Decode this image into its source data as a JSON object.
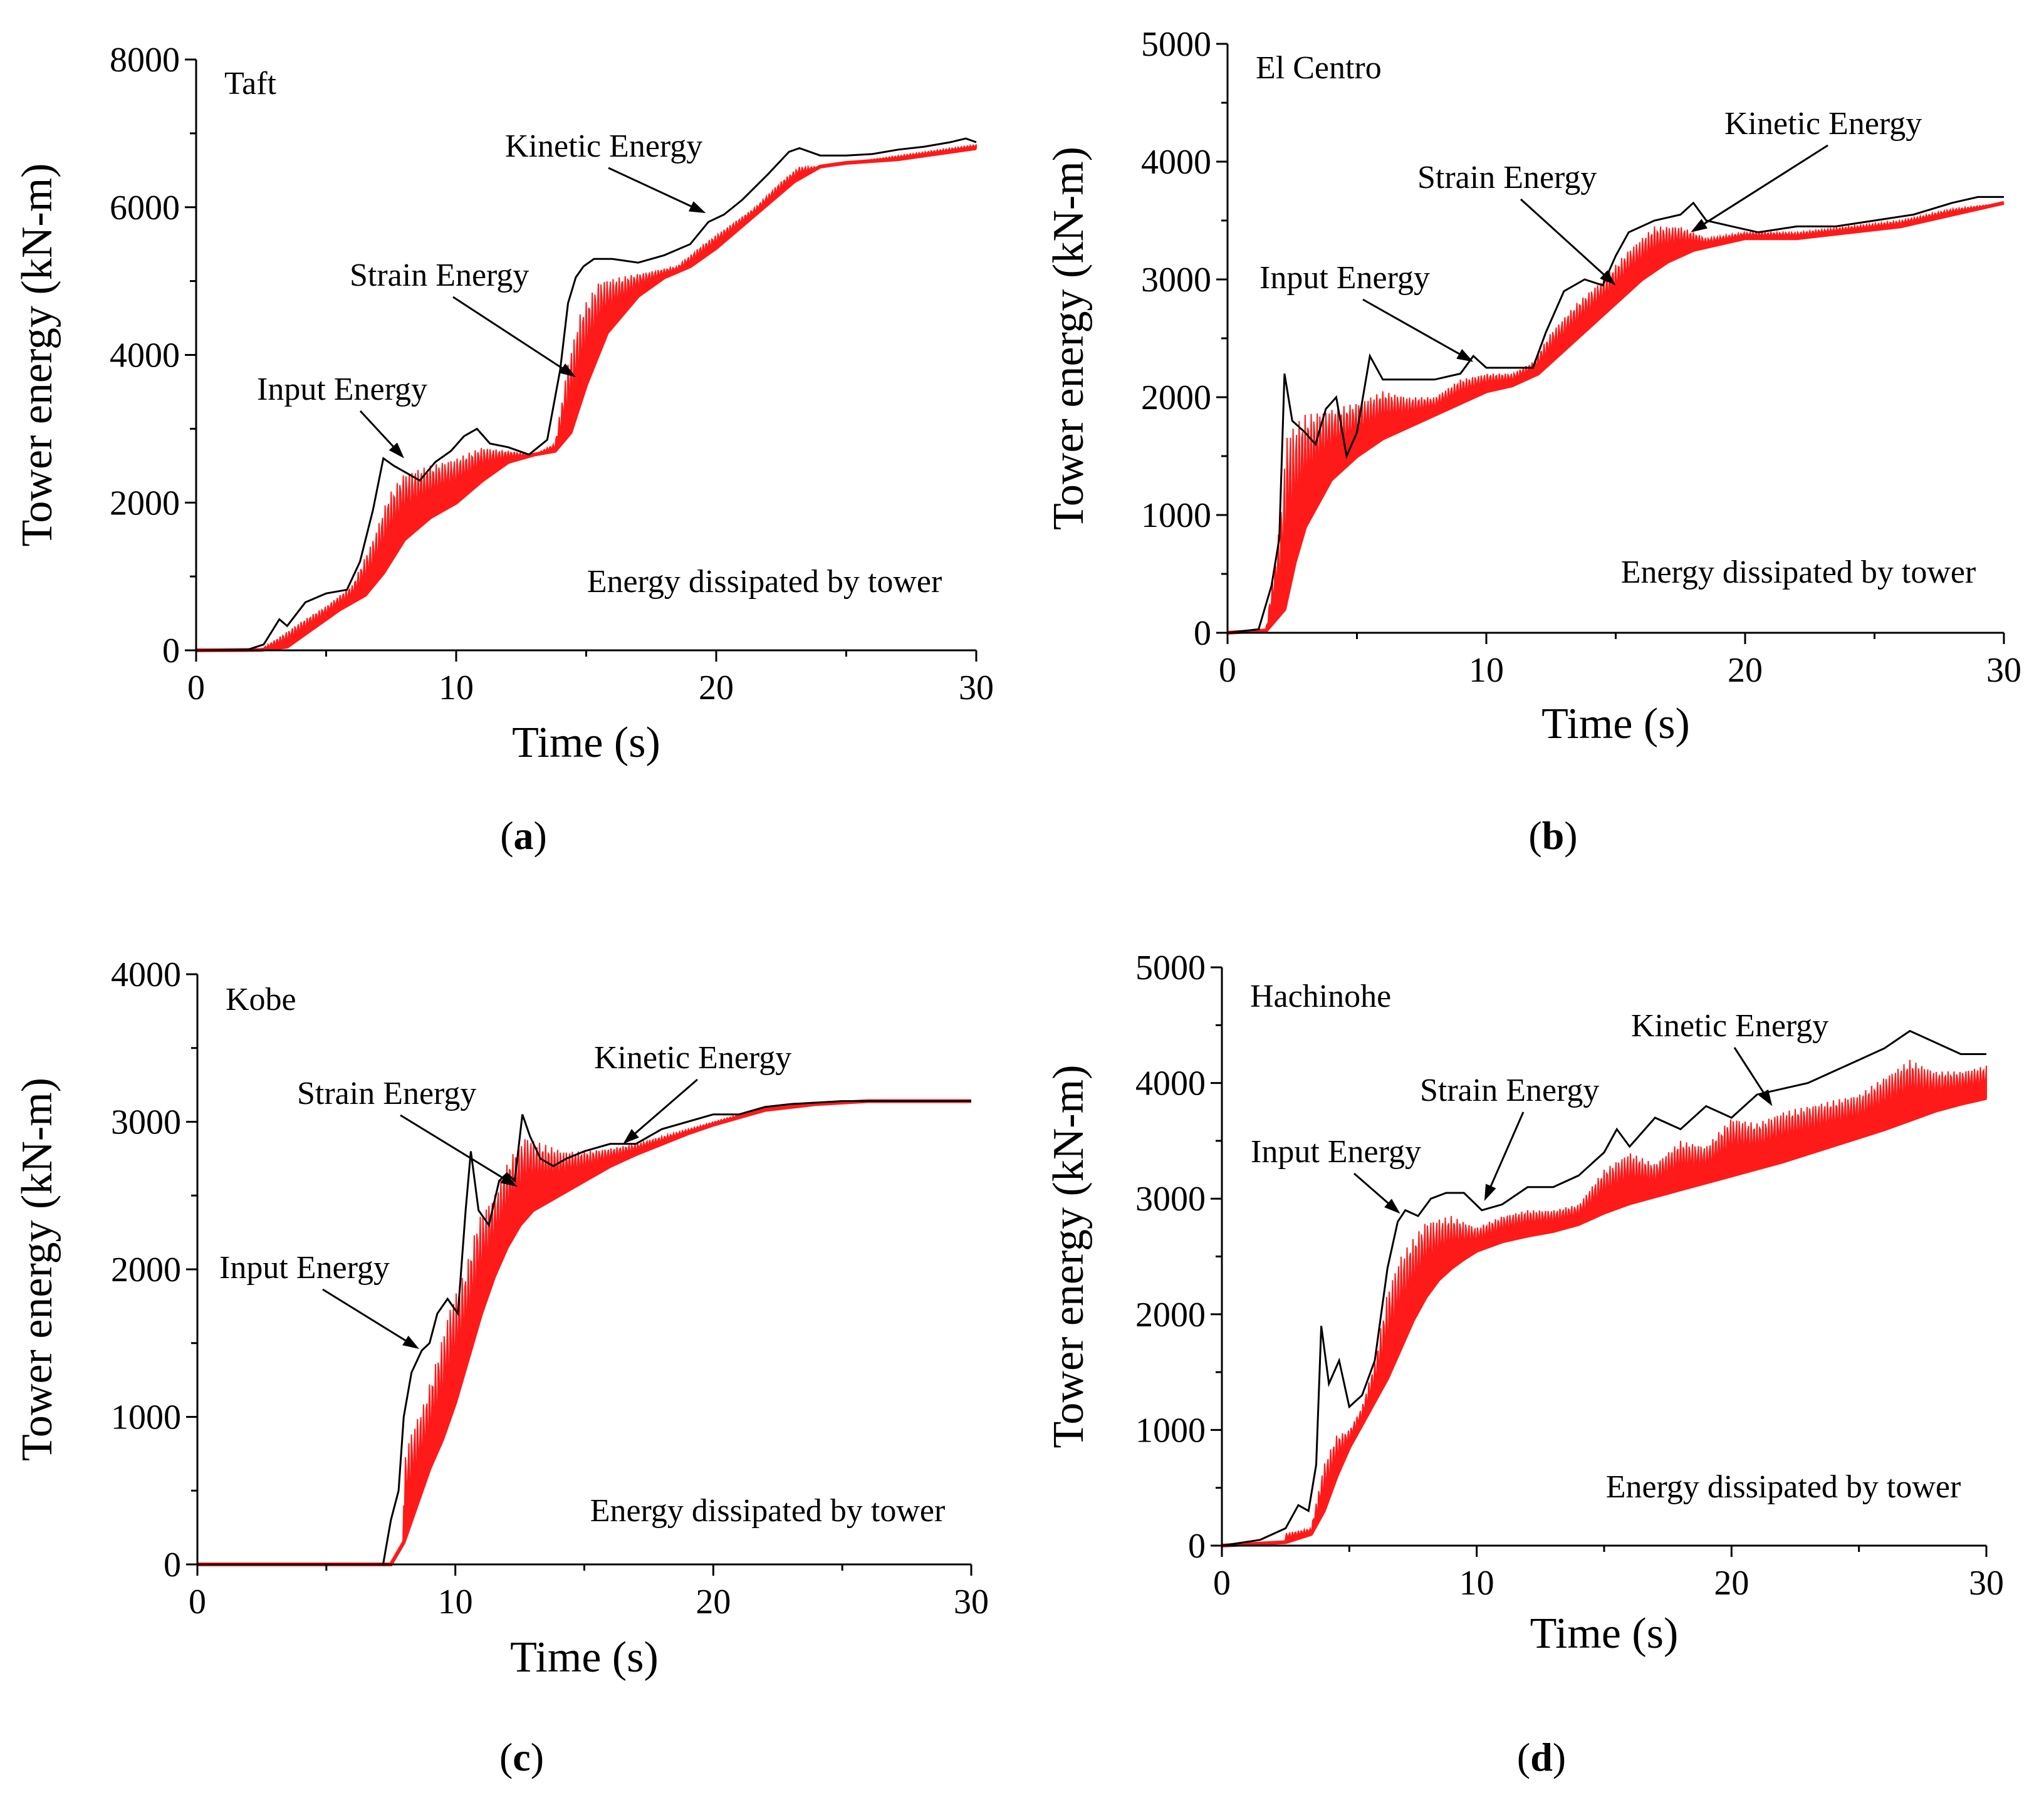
{
  "figure": {
    "colors": {
      "input_line": "#000000",
      "dissipated_fill": "#ff1a1a",
      "axis": "#000000"
    }
  },
  "chart_data": [
    {
      "type": "area",
      "panel_label": "(a)",
      "panel_letter": "a",
      "record": "Taft",
      "xlabel": "Time (s)",
      "ylabel": "Tower energy (kN-m)",
      "xlim": [
        0,
        30
      ],
      "ylim": [
        0,
        8000
      ],
      "xticks": [
        0,
        10,
        20,
        30
      ],
      "yticks": [
        0,
        2000,
        4000,
        6000,
        8000
      ],
      "series": [
        {
          "name": "Input Energy",
          "kind": "line",
          "x": [
            0,
            2,
            2.6,
            3.2,
            3.5,
            4.2,
            5,
            5.8,
            6.3,
            6.8,
            7.2,
            7.6,
            8.1,
            8.6,
            9.2,
            9.8,
            10.3,
            10.8,
            11.3,
            12,
            12.8,
            13.5,
            14,
            14.3,
            14.6,
            14.9,
            15.3,
            16,
            17,
            18,
            19,
            19.7,
            20.3,
            21,
            22,
            22.8,
            23.2,
            24,
            25,
            26,
            27,
            28,
            29,
            29.6,
            30
          ],
          "values": [
            0,
            10,
            80,
            420,
            330,
            650,
            770,
            820,
            1200,
            1900,
            2600,
            2500,
            2400,
            2300,
            2550,
            2700,
            2900,
            3000,
            2800,
            2750,
            2650,
            2850,
            3800,
            4700,
            5050,
            5200,
            5300,
            5300,
            5250,
            5350,
            5500,
            5800,
            5900,
            6100,
            6450,
            6750,
            6800,
            6700,
            6700,
            6720,
            6780,
            6820,
            6880,
            6930,
            6880
          ]
        },
        {
          "name": "Strain Energy",
          "kind": "band-top",
          "x": [
            0,
            2.5,
            3.2,
            4,
            5,
            6,
            6.8,
            7.4,
            8,
            9,
            10,
            11,
            12,
            13,
            13.8,
            14.3,
            14.8,
            15.5,
            17,
            18.5,
            19.5,
            20.3,
            21.5,
            22.5,
            23.2,
            24,
            25,
            27,
            29,
            30
          ],
          "values": [
            0,
            20,
            180,
            380,
            600,
            880,
            1500,
            2100,
            2400,
            2500,
            2600,
            2750,
            2700,
            2650,
            2800,
            3900,
            4600,
            5000,
            5100,
            5200,
            5500,
            5700,
            6000,
            6350,
            6550,
            6550,
            6600,
            6700,
            6800,
            6850
          ]
        },
        {
          "name": "Energy dissipated by tower",
          "kind": "band-bottom",
          "x": [
            0,
            2.5,
            3.5,
            4.5,
            5.5,
            6.5,
            7.2,
            8,
            9,
            10,
            11,
            12,
            13,
            13.8,
            14.4,
            15,
            15.8,
            17,
            18,
            19,
            20,
            21,
            22,
            23,
            24,
            25,
            27,
            30
          ],
          "values": [
            0,
            5,
            50,
            300,
            550,
            750,
            1050,
            1500,
            1800,
            2000,
            2300,
            2550,
            2650,
            2700,
            2950,
            3600,
            4300,
            4800,
            5050,
            5200,
            5450,
            5750,
            6050,
            6350,
            6550,
            6600,
            6650,
            6800
          ]
        }
      ],
      "annotations": [
        {
          "text": "Input Energy",
          "x": 8.0,
          "y": 2600
        },
        {
          "text": "Strain Energy",
          "x": 14.6,
          "y": 3700
        },
        {
          "text": "Kinetic Energy",
          "x": 19.6,
          "y": 5920
        },
        {
          "text": "Energy dissipated by tower"
        }
      ]
    },
    {
      "type": "area",
      "panel_label": "(b)",
      "panel_letter": "b",
      "record": "El Centro",
      "xlabel": "Time (s)",
      "ylabel": "Tower energy (kN-m)",
      "xlim": [
        0,
        30
      ],
      "ylim": [
        0,
        5000
      ],
      "xticks": [
        0,
        10,
        20,
        30
      ],
      "yticks": [
        0,
        1000,
        2000,
        3000,
        4000,
        5000
      ],
      "series": [
        {
          "name": "Input Energy",
          "kind": "line",
          "x": [
            0,
            1.2,
            1.7,
            2.0,
            2.2,
            2.5,
            3.0,
            3.4,
            3.8,
            4.2,
            4.6,
            5.0,
            5.5,
            6.0,
            7,
            8,
            9,
            9.5,
            10,
            11,
            11.8,
            12.3,
            13,
            13.8,
            14.5,
            15,
            15.5,
            16.5,
            17.5,
            18,
            18.5,
            19.5,
            20.5,
            22,
            23.5,
            25,
            26.5,
            28,
            29,
            30
          ],
          "values": [
            0,
            30,
            400,
            800,
            2200,
            1800,
            1700,
            1600,
            1900,
            2000,
            1500,
            1700,
            2350,
            2150,
            2150,
            2150,
            2200,
            2350,
            2250,
            2250,
            2250,
            2550,
            2900,
            3000,
            2950,
            3200,
            3400,
            3500,
            3550,
            3650,
            3500,
            3450,
            3400,
            3450,
            3450,
            3500,
            3550,
            3650,
            3700,
            3700
          ]
        },
        {
          "name": "Strain Energy",
          "kind": "band-top",
          "x": [
            0,
            1.5,
            2.0,
            2.3,
            3,
            4,
            5,
            6,
            7,
            8,
            9,
            10,
            11,
            11.8,
            12.5,
            13.5,
            14.5,
            15.5,
            16.5,
            17.5,
            18.5,
            20,
            22,
            24,
            26,
            28,
            30
          ],
          "values": [
            0,
            60,
            900,
            1700,
            1850,
            1900,
            1950,
            2050,
            2000,
            2000,
            2150,
            2200,
            2200,
            2300,
            2550,
            2800,
            3000,
            3250,
            3450,
            3450,
            3350,
            3400,
            3400,
            3450,
            3500,
            3600,
            3650
          ]
        },
        {
          "name": "Energy dissipated by tower",
          "kind": "band-bottom",
          "x": [
            0,
            1.5,
            2.2,
            2.6,
            3,
            3.5,
            4,
            5,
            6,
            7,
            8,
            9,
            10,
            11,
            12,
            13,
            14,
            15,
            16,
            17,
            18,
            19,
            20,
            22,
            24,
            26,
            28,
            30
          ],
          "values": [
            0,
            20,
            200,
            600,
            900,
            1100,
            1300,
            1500,
            1650,
            1750,
            1850,
            1950,
            2050,
            2100,
            2200,
            2400,
            2600,
            2800,
            3000,
            3150,
            3250,
            3300,
            3350,
            3350,
            3400,
            3450,
            3550,
            3650
          ]
        }
      ],
      "annotations": [
        {
          "text": "Input Energy",
          "x": 9.5,
          "y": 2300
        },
        {
          "text": "Strain Energy",
          "x": 15.0,
          "y": 2950
        },
        {
          "text": "Kinetic Energy",
          "x": 17.9,
          "y": 3400
        },
        {
          "text": "Energy dissipated by tower"
        }
      ]
    },
    {
      "type": "area",
      "panel_label": "(c)",
      "panel_letter": "c",
      "record": "Kobe",
      "xlabel": "Time (s)",
      "ylabel": "Tower energy (kN-m)",
      "xlim": [
        0,
        30
      ],
      "ylim": [
        0,
        4000
      ],
      "xticks": [
        0,
        10,
        20,
        30
      ],
      "yticks": [
        0,
        1000,
        2000,
        3000,
        4000
      ],
      "series": [
        {
          "name": "Input Energy",
          "kind": "line",
          "x": [
            0,
            7.2,
            7.5,
            7.8,
            8.0,
            8.3,
            8.7,
            9.0,
            9.3,
            9.7,
            10.1,
            10.4,
            10.6,
            10.9,
            11.3,
            11.7,
            12.0,
            12.3,
            12.6,
            12.9,
            13.3,
            13.8,
            14.3,
            15,
            16,
            17,
            18,
            19,
            20,
            21,
            22,
            23,
            24,
            25,
            26,
            28,
            30
          ],
          "values": [
            0,
            0,
            300,
            500,
            1000,
            1300,
            1450,
            1500,
            1700,
            1800,
            1700,
            2400,
            2800,
            2400,
            2300,
            2600,
            2650,
            2600,
            3050,
            2900,
            2750,
            2700,
            2750,
            2800,
            2850,
            2850,
            2950,
            3000,
            3050,
            3050,
            3100,
            3120,
            3130,
            3140,
            3140,
            3140,
            3140
          ]
        },
        {
          "name": "Strain Energy",
          "kind": "band-top",
          "x": [
            0,
            7.4,
            7.8,
            8.3,
            8.8,
            9.3,
            9.8,
            10.4,
            10.9,
            11.5,
            12.1,
            12.7,
            13.4,
            14.2,
            15,
            16,
            17,
            18,
            19,
            20,
            21,
            22,
            24,
            26,
            30
          ],
          "values": [
            0,
            0,
            600,
            900,
            1100,
            1400,
            1750,
            2000,
            2350,
            2500,
            2750,
            2900,
            2850,
            2800,
            2800,
            2820,
            2850,
            2900,
            2950,
            3000,
            3050,
            3100,
            3130,
            3140,
            3140
          ]
        },
        {
          "name": "Energy dissipated by tower",
          "kind": "band-bottom",
          "x": [
            0,
            7.5,
            8.0,
            8.5,
            9.0,
            9.5,
            10.0,
            10.5,
            11.0,
            11.5,
            12.0,
            12.5,
            13.0,
            13.5,
            14.0,
            15,
            16,
            17,
            18,
            19,
            20,
            21,
            22,
            24,
            26,
            30
          ],
          "values": [
            0,
            0,
            150,
            400,
            650,
            850,
            1100,
            1400,
            1700,
            1950,
            2150,
            2300,
            2400,
            2450,
            2500,
            2600,
            2700,
            2780,
            2850,
            2920,
            2980,
            3030,
            3080,
            3120,
            3140,
            3140
          ]
        }
      ],
      "annotations": [
        {
          "text": "Input Energy",
          "x": 8.6,
          "y": 1460
        },
        {
          "text": "Strain Energy",
          "x": 12.4,
          "y": 2560
        },
        {
          "text": "Kinetic Energy",
          "x": 16.5,
          "y": 2850
        },
        {
          "text": "Energy dissipated by tower"
        }
      ]
    },
    {
      "type": "area",
      "panel_label": "(d)",
      "panel_letter": "d",
      "record": "Hachinohe",
      "xlabel": "Time (s)",
      "ylabel": "Tower energy (kN-m)",
      "xlim": [
        0,
        30
      ],
      "ylim": [
        0,
        5000
      ],
      "xticks": [
        0,
        10,
        20,
        30
      ],
      "yticks": [
        0,
        1000,
        2000,
        3000,
        4000,
        5000
      ],
      "series": [
        {
          "name": "Input Energy",
          "kind": "line",
          "x": [
            0,
            1.5,
            2.5,
            3.0,
            3.4,
            3.7,
            3.9,
            4.2,
            4.6,
            5.0,
            5.5,
            6.0,
            6.5,
            6.9,
            7.2,
            7.7,
            8.2,
            8.8,
            9.5,
            10.2,
            11,
            12,
            13,
            14,
            15,
            15.5,
            16,
            17,
            18,
            19,
            20,
            21,
            22,
            23,
            24,
            25,
            26,
            27,
            28,
            29,
            30
          ],
          "values": [
            0,
            50,
            150,
            350,
            300,
            700,
            1900,
            1400,
            1600,
            1200,
            1300,
            1600,
            2400,
            2800,
            2900,
            2850,
            3000,
            3050,
            3050,
            2900,
            2950,
            3100,
            3100,
            3200,
            3400,
            3600,
            3450,
            3700,
            3600,
            3800,
            3700,
            3900,
            3950,
            4000,
            4100,
            4200,
            4300,
            4450,
            4350,
            4250,
            4250
          ]
        },
        {
          "name": "Strain Energy",
          "kind": "band-top",
          "x": [
            0,
            3.5,
            4.0,
            4.5,
            5,
            5.5,
            6,
            6.5,
            7,
            8,
            9,
            10,
            11,
            12,
            13,
            14,
            15,
            16,
            17,
            18,
            19,
            20,
            21,
            22,
            23,
            24,
            25,
            26,
            27,
            28,
            29,
            30
          ],
          "values": [
            0,
            150,
            700,
            950,
            1000,
            1200,
            1600,
            2200,
            2500,
            2800,
            2850,
            2750,
            2850,
            2900,
            2900,
            2950,
            3250,
            3400,
            3300,
            3500,
            3450,
            3700,
            3650,
            3750,
            3800,
            3850,
            3900,
            4050,
            4200,
            4100,
            4100,
            4150
          ]
        },
        {
          "name": "Energy dissipated by tower",
          "kind": "band-bottom",
          "x": [
            0,
            2.5,
            3.5,
            4.0,
            4.5,
            5,
            5.5,
            6,
            6.5,
            7,
            7.5,
            8,
            8.5,
            9,
            9.5,
            10,
            11,
            12,
            13,
            14,
            15,
            16,
            17,
            18,
            19,
            20,
            21,
            22,
            23,
            24,
            25,
            26,
            27,
            28,
            29,
            30
          ],
          "values": [
            0,
            30,
            100,
            300,
            600,
            850,
            1050,
            1250,
            1450,
            1700,
            1950,
            2150,
            2300,
            2400,
            2480,
            2550,
            2630,
            2680,
            2720,
            2780,
            2880,
            2960,
            3020,
            3080,
            3140,
            3200,
            3260,
            3320,
            3390,
            3460,
            3530,
            3600,
            3680,
            3760,
            3820,
            3870
          ]
        }
      ],
      "annotations": [
        {
          "text": "Input Energy",
          "x": 7.0,
          "y": 2870
        },
        {
          "text": "Strain Energy",
          "x": 10.3,
          "y": 2980
        },
        {
          "text": "Kinetic Energy",
          "x": 21.6,
          "y": 3800
        },
        {
          "text": "Energy dissipated by tower"
        }
      ]
    }
  ]
}
